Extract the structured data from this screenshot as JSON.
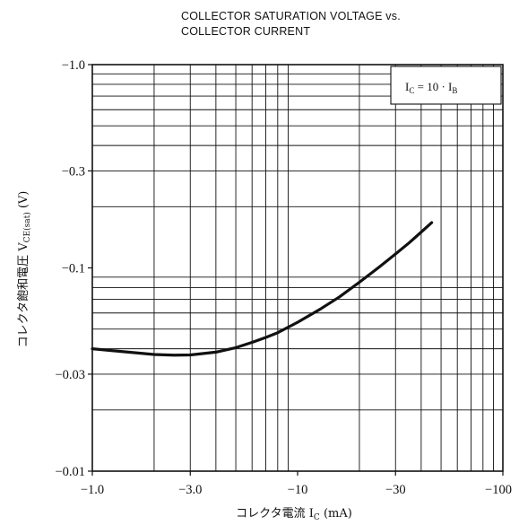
{
  "chart_data": {
    "type": "line",
    "title_lines": [
      "COLLECTOR SATURATION VOLTAGE vs.",
      "COLLECTOR CURRENT"
    ],
    "x_scale": "log",
    "y_scale": "log",
    "xlim": [
      -1.0,
      -100
    ],
    "ylim": [
      -0.01,
      -1.0
    ],
    "x_ticks": [
      {
        "value": -1.0,
        "label": "−1.0"
      },
      {
        "value": -3.0,
        "label": "−3.0"
      },
      {
        "value": -10,
        "label": "−10"
      },
      {
        "value": -30,
        "label": "−30"
      },
      {
        "value": -100,
        "label": "−100"
      }
    ],
    "y_ticks": [
      {
        "value": -1.0,
        "label": "−1.0"
      },
      {
        "value": -0.3,
        "label": "−0.3"
      },
      {
        "value": -0.1,
        "label": "−0.1"
      },
      {
        "value": -0.03,
        "label": "−0.03"
      },
      {
        "value": -0.01,
        "label": "−0.01"
      }
    ],
    "xlabel": {
      "main": "コレクタ電流 I",
      "sub": "C",
      "unit": " (mA)"
    },
    "ylabel": {
      "main": "コレクタ飽和電圧 V",
      "sub": "CE(sat)",
      "unit": " (V)"
    },
    "condition": {
      "a": "I",
      "a_sub": "C",
      "mid": " = 10 · I",
      "b_sub": "B"
    },
    "grid": true,
    "series": [
      {
        "x": [
          -1.0,
          -1.5,
          -2.0,
          -2.5,
          -3.0,
          -4.0,
          -5.0,
          -6.0,
          -7.0,
          -8.0,
          -10,
          -13,
          -16,
          -20,
          -25,
          -30,
          -35,
          -40,
          -45
        ],
        "y": [
          -0.04,
          -0.0385,
          -0.0375,
          -0.0372,
          -0.0373,
          -0.0385,
          -0.0405,
          -0.043,
          -0.0455,
          -0.048,
          -0.054,
          -0.063,
          -0.072,
          -0.085,
          -0.101,
          -0.117,
          -0.133,
          -0.15,
          -0.167
        ]
      }
    ]
  }
}
